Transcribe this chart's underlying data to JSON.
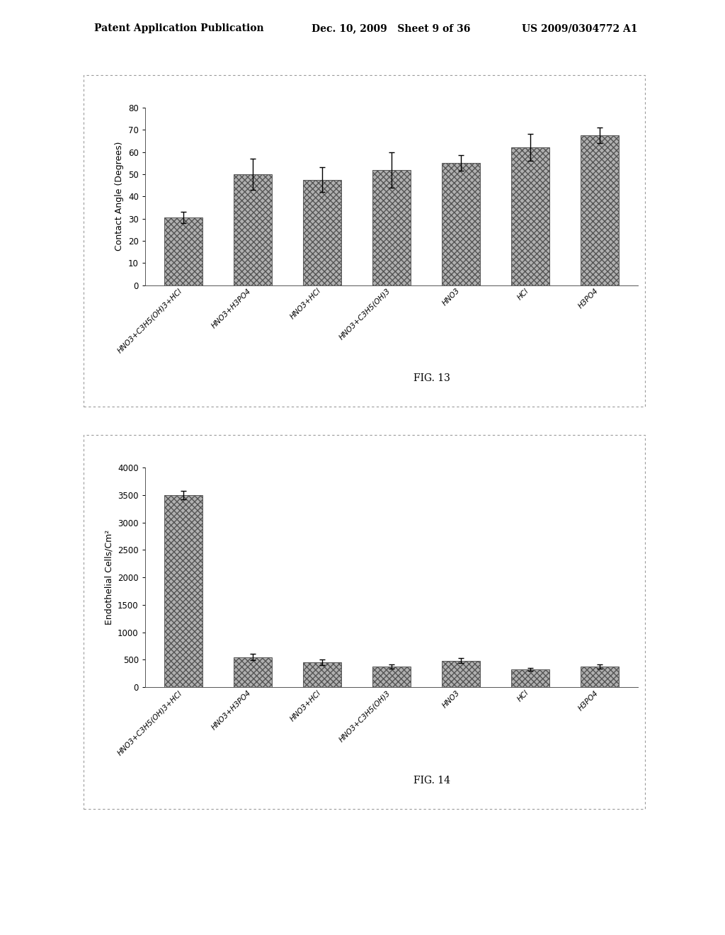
{
  "fig13": {
    "categories": [
      "HNO3+C3H5(OH)3+HCl",
      "HNO3+H3PO4",
      "HNO3+HCl",
      "HNO3+C3H5(OH)3",
      "HNO3",
      "HCl",
      "H3PO4"
    ],
    "values": [
      30.5,
      50.0,
      47.5,
      52.0,
      55.0,
      62.0,
      67.5
    ],
    "errors": [
      2.5,
      7.0,
      5.5,
      8.0,
      3.5,
      6.0,
      3.5
    ],
    "ylabel": "Contact Angle (Degrees)",
    "ylim": [
      0,
      80
    ],
    "yticks": [
      0,
      10,
      20,
      30,
      40,
      50,
      60,
      70,
      80
    ],
    "fig_label": "FIG. 13",
    "bar_color": "#b0b0b0",
    "bar_hatch": "xxxx",
    "bar_edgecolor": "#555555"
  },
  "fig14": {
    "categories": [
      "HNO3+C3H5(OH)3+HCl",
      "HNO3+H3PO4",
      "HNO3+HCl",
      "HNO3+C3H5(OH)3",
      "HNO3",
      "HCl",
      "H3PO4"
    ],
    "values": [
      3500,
      550,
      450,
      380,
      480,
      320,
      380
    ],
    "errors": [
      80,
      55,
      50,
      40,
      45,
      25,
      40
    ],
    "ylabel": "Endothelial Cells/Cm²",
    "ylim": [
      0,
      4000
    ],
    "yticks": [
      0,
      500,
      1000,
      1500,
      2000,
      2500,
      3000,
      3500,
      4000
    ],
    "fig_label": "FIG. 14",
    "bar_color": "#b0b0b0",
    "bar_hatch": "xxxx",
    "bar_edgecolor": "#555555"
  },
  "header_left": "Patent Application Publication",
  "header_mid": "Dec. 10, 2009   Sheet 9 of 36",
  "header_right": "US 2009/0304772 A1",
  "bg_color": "#ffffff",
  "panel_bg": "#ffffff",
  "border_color": "#999999"
}
